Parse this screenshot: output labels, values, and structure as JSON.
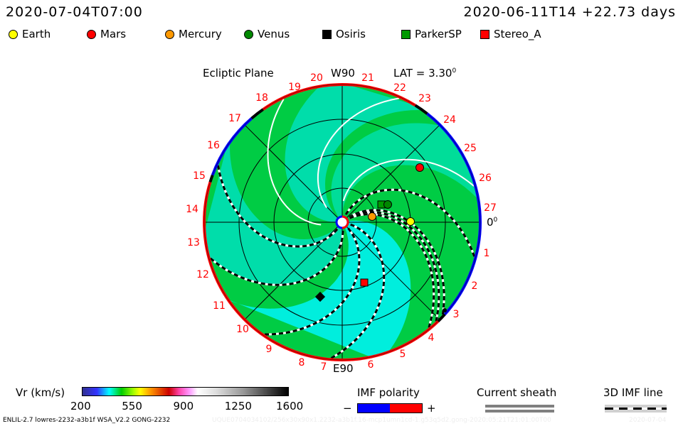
{
  "header": {
    "model_time": "2020-07-04T07:00",
    "run_time": "2020-06-11T14 +22.73 days"
  },
  "legend": [
    {
      "label": "Earth",
      "color": "#ffff00",
      "shape": "circle"
    },
    {
      "label": "Mars",
      "color": "#ff0000",
      "shape": "circle"
    },
    {
      "label": "Mercury",
      "color": "#ff9900",
      "shape": "circle"
    },
    {
      "label": "Venus",
      "color": "#008800",
      "shape": "circle"
    },
    {
      "label": "Osiris",
      "color": "#000000",
      "shape": "square"
    },
    {
      "label": "ParkerSP",
      "color": "#009900",
      "shape": "square"
    },
    {
      "label": "Stereo_A",
      "color": "#ff0000",
      "shape": "square"
    }
  ],
  "plot": {
    "title": "Ecliptic Plane",
    "top_label": "W90",
    "bottom_label": "E90",
    "lat_label": "LAT = 3.30",
    "lat_sup": "0",
    "zero_label": "0",
    "zero_sup": "0",
    "day_labels": [
      "27",
      "1",
      "2",
      "3",
      "4",
      "5",
      "6",
      "7",
      "8",
      "9",
      "10",
      "11",
      "12",
      "13",
      "14",
      "15",
      "16",
      "17",
      "18",
      "19",
      "20",
      "21",
      "22",
      "23",
      "24",
      "25",
      "26"
    ]
  },
  "colorbar": {
    "label": "Vr (km/s)",
    "ticks": [
      "200",
      "550",
      "900",
      "1250",
      "1600"
    ]
  },
  "imf": {
    "title": "IMF polarity",
    "minus": "−",
    "plus": "+",
    "neg_color": "#0000ff",
    "pos_color": "#ff0000"
  },
  "sheath": {
    "title": "Current sheath"
  },
  "imf_line": {
    "title": "3D IMF line"
  },
  "footer": {
    "run_info": "ENLIL-2.7 lowres-2232-a3b1f WSA_V2.2 GONG-2232",
    "faint_info": "UQUE0704034102/256x30x90x1.2232-a3b1f.16-mcp1umn1cd-1.g53q5d2.gong-2020:05:21T21:01:00T00",
    "faint_date": "2020-07-04"
  }
}
